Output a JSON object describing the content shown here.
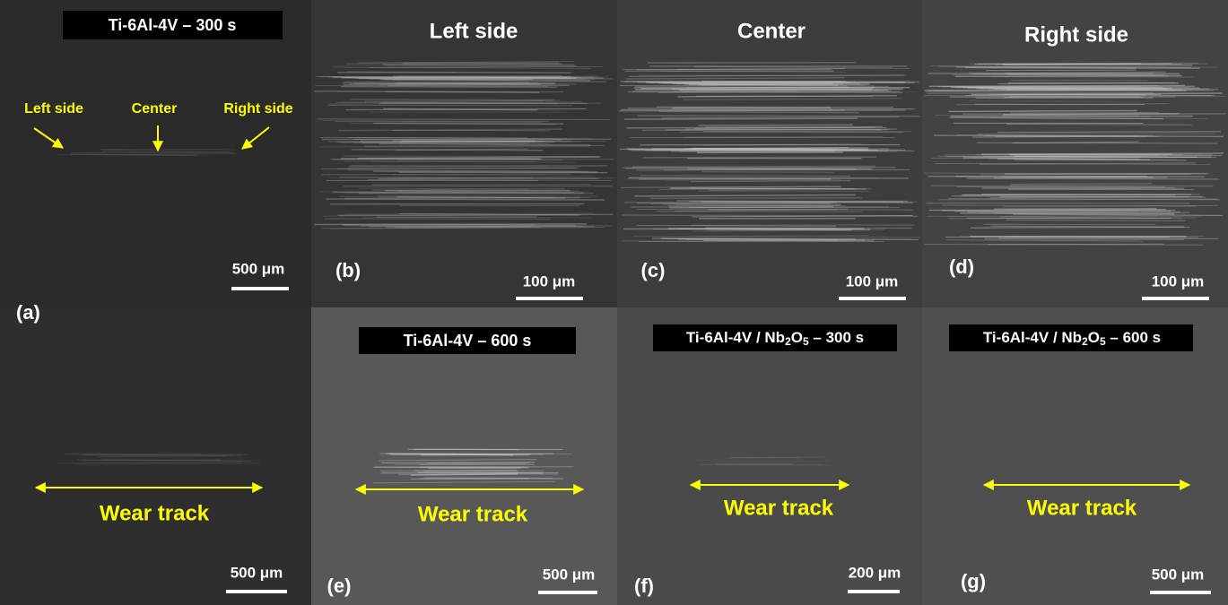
{
  "panels": [
    {
      "label": "(a)",
      "title": "Ti-6Al-4V – 300 s",
      "annotations": [
        "Left side",
        "Center",
        "Right side"
      ],
      "scale_bar": "500 μm"
    },
    {
      "label": "(b)",
      "title": "Left side",
      "scale_bar": "100 μm"
    },
    {
      "label": "(c)",
      "title": "Center",
      "scale_bar": "100 μm"
    },
    {
      "label": "(d)",
      "title": "Right side",
      "scale_bar": "100 μm"
    },
    {
      "annotation": "Wear track",
      "scale_bar": "500 μm"
    },
    {
      "label": "(e)",
      "title": "Ti-6Al-4V – 600 s",
      "annotation": "Wear track",
      "scale_bar": "500 μm"
    },
    {
      "label": "(f)",
      "title": [
        "Ti-6Al-4V / Nb",
        "2",
        "O",
        "5",
        " – 300 s"
      ],
      "annotation": "Wear track",
      "scale_bar": "200 μm"
    },
    {
      "label": "(g)",
      "title": [
        "Ti-6Al-4V / Nb",
        "2",
        "O",
        "5",
        " – 600 s"
      ],
      "annotation": "Wear track",
      "scale_bar": "500 μm"
    }
  ]
}
